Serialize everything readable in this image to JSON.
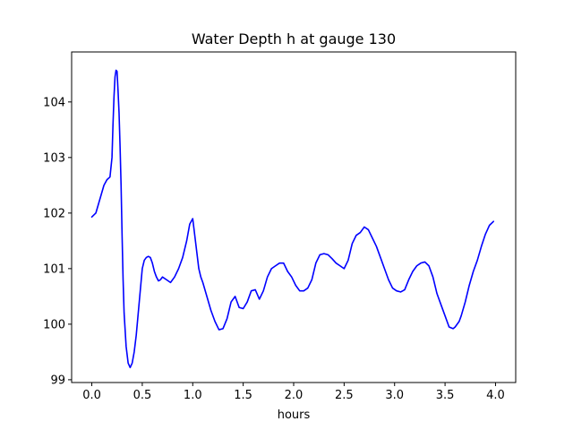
{
  "chart_data": {
    "type": "line",
    "title": "Water Depth h at gauge 130",
    "xlabel": "hours",
    "ylabel": "",
    "xlim": [
      -0.2,
      4.2
    ],
    "ylim": [
      98.95,
      104.9
    ],
    "xticks": [
      0.0,
      0.5,
      1.0,
      1.5,
      2.0,
      2.5,
      3.0,
      3.5,
      4.0
    ],
    "xtick_labels": [
      "0.0",
      "0.5",
      "1.0",
      "1.5",
      "2.0",
      "2.5",
      "3.0",
      "3.5",
      "4.0"
    ],
    "yticks": [
      99,
      100,
      101,
      102,
      103,
      104
    ],
    "ytick_labels": [
      "99",
      "100",
      "101",
      "102",
      "103",
      "104"
    ],
    "grid": false,
    "series": [
      {
        "color": "#0000ff",
        "x": [
          0.0,
          0.04,
          0.08,
          0.12,
          0.15,
          0.18,
          0.2,
          0.21,
          0.22,
          0.23,
          0.24,
          0.25,
          0.26,
          0.27,
          0.28,
          0.29,
          0.3,
          0.31,
          0.32,
          0.34,
          0.36,
          0.38,
          0.4,
          0.42,
          0.44,
          0.46,
          0.48,
          0.5,
          0.52,
          0.54,
          0.56,
          0.58,
          0.6,
          0.62,
          0.64,
          0.66,
          0.68,
          0.7,
          0.74,
          0.78,
          0.82,
          0.86,
          0.9,
          0.94,
          0.97,
          1.0,
          1.02,
          1.04,
          1.06,
          1.08,
          1.1,
          1.14,
          1.18,
          1.22,
          1.26,
          1.3,
          1.34,
          1.38,
          1.42,
          1.46,
          1.5,
          1.54,
          1.58,
          1.62,
          1.66,
          1.7,
          1.74,
          1.78,
          1.82,
          1.86,
          1.9,
          1.94,
          1.98,
          2.02,
          2.06,
          2.1,
          2.14,
          2.18,
          2.22,
          2.26,
          2.3,
          2.34,
          2.38,
          2.42,
          2.46,
          2.5,
          2.54,
          2.58,
          2.62,
          2.66,
          2.7,
          2.74,
          2.78,
          2.82,
          2.86,
          2.9,
          2.94,
          2.98,
          3.02,
          3.06,
          3.1,
          3.14,
          3.18,
          3.22,
          3.26,
          3.3,
          3.34,
          3.38,
          3.42,
          3.46,
          3.5,
          3.54,
          3.58,
          3.6,
          3.62,
          3.64,
          3.66,
          3.7,
          3.74,
          3.78,
          3.82,
          3.86,
          3.9,
          3.94,
          3.98
        ],
        "y": [
          101.93,
          102.0,
          102.25,
          102.5,
          102.6,
          102.65,
          103.0,
          103.6,
          104.1,
          104.45,
          104.57,
          104.55,
          104.2,
          103.8,
          103.2,
          102.5,
          101.6,
          100.8,
          100.2,
          99.6,
          99.3,
          99.22,
          99.3,
          99.5,
          99.8,
          100.2,
          100.6,
          101.0,
          101.15,
          101.2,
          101.22,
          101.2,
          101.1,
          100.95,
          100.85,
          100.78,
          100.8,
          100.85,
          100.8,
          100.75,
          100.85,
          101.0,
          101.2,
          101.5,
          101.8,
          101.9,
          101.6,
          101.3,
          101.0,
          100.85,
          100.75,
          100.5,
          100.25,
          100.05,
          99.9,
          99.92,
          100.1,
          100.4,
          100.5,
          100.3,
          100.28,
          100.4,
          100.6,
          100.62,
          100.45,
          100.6,
          100.85,
          101.0,
          101.05,
          101.1,
          101.1,
          100.95,
          100.85,
          100.7,
          100.6,
          100.6,
          100.65,
          100.8,
          101.1,
          101.25,
          101.27,
          101.25,
          101.18,
          101.1,
          101.05,
          101.0,
          101.15,
          101.45,
          101.6,
          101.65,
          101.75,
          101.7,
          101.55,
          101.4,
          101.2,
          101.0,
          100.8,
          100.65,
          100.6,
          100.58,
          100.62,
          100.8,
          100.95,
          101.05,
          101.1,
          101.12,
          101.05,
          100.85,
          100.55,
          100.35,
          100.15,
          99.95,
          99.92,
          99.95,
          100.0,
          100.05,
          100.15,
          100.4,
          100.7,
          100.95,
          101.15,
          101.4,
          101.62,
          101.78,
          101.85
        ]
      }
    ]
  }
}
